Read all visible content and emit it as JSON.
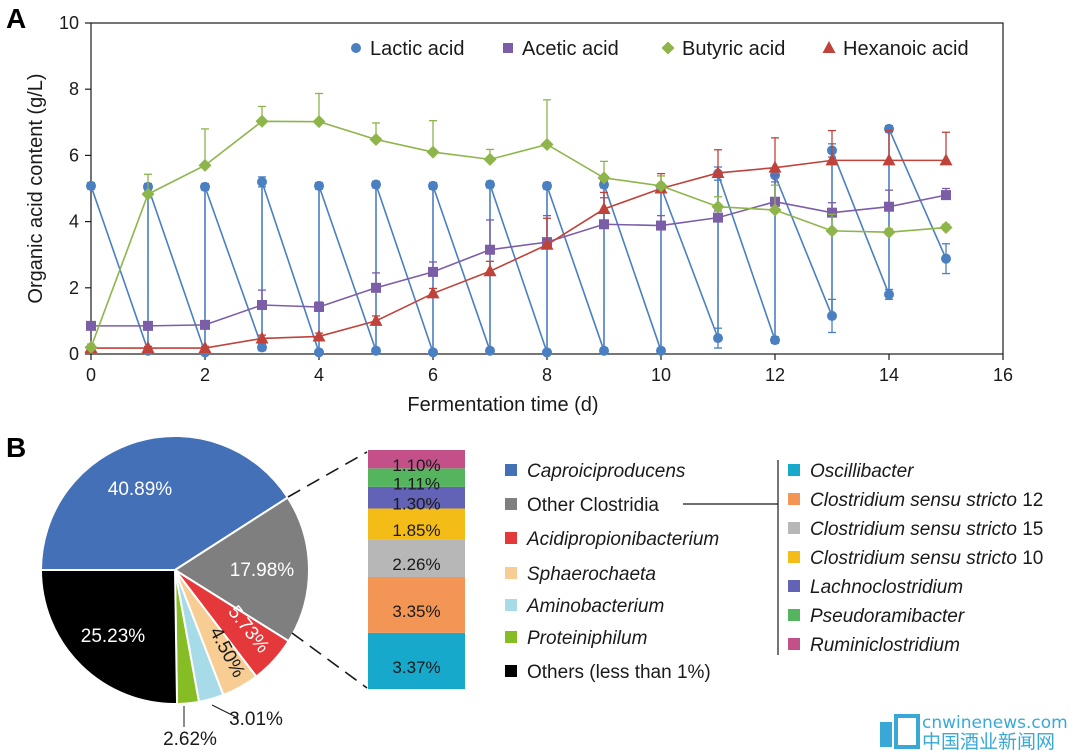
{
  "panels": {
    "a": "A",
    "b": "B"
  },
  "chart_data": [
    {
      "type": "line",
      "panel": "A",
      "xlabel": "Fermentation time (d)",
      "ylabel": "Organic acid content (g/L)",
      "xlim": [
        0,
        16
      ],
      "ylim": [
        0,
        10
      ],
      "xticks": [
        0,
        2,
        4,
        6,
        8,
        10,
        12,
        14,
        16
      ],
      "yticks": [
        0,
        2,
        4,
        6,
        8,
        10
      ],
      "grid": false,
      "legend_position": "top",
      "series": [
        {
          "name": "Lactic acid",
          "color": "#4a7fc1",
          "marker": "circle",
          "x": [
            0,
            1,
            1,
            2,
            2,
            3,
            3,
            4,
            4,
            5,
            5,
            6,
            6,
            7,
            7,
            8,
            8,
            9,
            9,
            10,
            10,
            11,
            11,
            12,
            12,
            13,
            13,
            14,
            14,
            15
          ],
          "y": [
            5.08,
            0.1,
            5.05,
            0.05,
            5.05,
            0.2,
            5.2,
            0.05,
            5.08,
            0.1,
            5.12,
            0.05,
            5.08,
            0.1,
            5.12,
            0.05,
            5.08,
            0.1,
            5.12,
            0.1,
            5.05,
            0.48,
            5.45,
            0.42,
            5.4,
            1.15,
            6.15,
            1.8,
            6.8,
            2.88
          ],
          "error": [
            0.1,
            0.05,
            0.1,
            0.05,
            0.1,
            0.1,
            0.15,
            0.05,
            0.1,
            0.05,
            0.1,
            0.05,
            0.1,
            0.05,
            0.1,
            0.05,
            0.1,
            0.05,
            0.1,
            0.05,
            0.1,
            0.3,
            0.2,
            0.1,
            0.2,
            0.5,
            0.2,
            0.15,
            0.1,
            0.45
          ]
        },
        {
          "name": "Acetic acid",
          "color": "#7b5ea7",
          "marker": "square",
          "x": [
            0,
            1,
            2,
            3,
            4,
            5,
            6,
            7,
            8,
            9,
            10,
            11,
            12,
            13,
            14,
            15
          ],
          "y": [
            0.85,
            0.85,
            0.88,
            1.48,
            1.42,
            2.0,
            2.48,
            3.15,
            3.38,
            3.92,
            3.88,
            4.12,
            4.6,
            4.27,
            4.45,
            4.8
          ],
          "error": [
            0.05,
            0.05,
            0.05,
            0.45,
            0.15,
            0.45,
            0.3,
            0.9,
            0.8,
            0.8,
            0.3,
            0.2,
            0.8,
            0.3,
            0.5,
            0.2
          ]
        },
        {
          "name": "Butyric acid",
          "color": "#8db54a",
          "marker": "diamond",
          "x": [
            0,
            1,
            2,
            3,
            4,
            5,
            6,
            7,
            8,
            9,
            10,
            11,
            12,
            13,
            14,
            15
          ],
          "y": [
            0.2,
            4.83,
            5.7,
            7.03,
            7.02,
            6.48,
            6.1,
            5.88,
            6.33,
            5.32,
            5.08,
            4.45,
            4.35,
            3.72,
            3.68,
            3.82
          ],
          "error": [
            0.1,
            0.6,
            1.1,
            0.45,
            0.85,
            0.5,
            0.95,
            0.3,
            1.35,
            0.5,
            0.3,
            0.3,
            0.75,
            0.5,
            0.1,
            0.1
          ]
        },
        {
          "name": "Hexanoic acid",
          "color": "#c0433b",
          "marker": "triangle",
          "x": [
            0,
            1,
            2,
            3,
            4,
            5,
            6,
            7,
            8,
            9,
            10,
            11,
            12,
            13,
            14,
            15
          ],
          "y": [
            0.18,
            0.18,
            0.18,
            0.47,
            0.53,
            1.0,
            1.83,
            2.5,
            3.3,
            4.38,
            5.0,
            5.47,
            5.63,
            5.85,
            5.85,
            5.85
          ],
          "error": [
            0.05,
            0.05,
            0.05,
            0.1,
            0.1,
            0.15,
            0.15,
            0.3,
            0.8,
            0.5,
            0.45,
            0.7,
            0.9,
            0.9,
            0.9,
            0.85
          ]
        }
      ]
    },
    {
      "type": "pie",
      "panel": "B",
      "slices": [
        {
          "name": "Caproiciproducens",
          "value": 40.89,
          "label": "40.89%",
          "color": "#4470b8",
          "italic": true
        },
        {
          "name": "Other Clostridia",
          "value": 17.98,
          "label": "17.98%",
          "color": "#7f7f7f",
          "italic": false
        },
        {
          "name": "Acidipropionibacterium",
          "value": 5.73,
          "label": "5.73%",
          "color": "#e4383a",
          "italic": true
        },
        {
          "name": "Sphaerochaeta",
          "value": 4.5,
          "label": "4.50%",
          "color": "#f7cd93",
          "italic": true
        },
        {
          "name": "Aminobacterium",
          "value": 3.01,
          "label": "3.01%",
          "color": "#a8dbe8",
          "italic": true
        },
        {
          "name": "Proteiniphilum",
          "value": 2.62,
          "label": "2.62%",
          "color": "#86bc24",
          "italic": true
        },
        {
          "name": "Others (less than 1%)",
          "value": 25.23,
          "label": "25.23%",
          "color": "#000000",
          "italic": false
        }
      ]
    },
    {
      "type": "bar",
      "panel": "B",
      "orientation": "stacked",
      "breakdown_of": "Other Clostridia",
      "segments": [
        {
          "name": "Oscillibacter",
          "value": 3.37,
          "label": "3.37%",
          "color": "#16a9cc"
        },
        {
          "name": "Clostridium sensu stricto 12",
          "value": 3.35,
          "label": "3.35%",
          "color": "#f39655"
        },
        {
          "name": "Clostridium sensu stricto 15",
          "value": 2.26,
          "label": "2.26%",
          "color": "#b7b7b7"
        },
        {
          "name": "Clostridium sensu stricto 10",
          "value": 1.85,
          "label": "1.85%",
          "color": "#f4bc16"
        },
        {
          "name": "Lachnoclostridium",
          "value": 1.3,
          "label": "1.30%",
          "color": "#6262b7"
        },
        {
          "name": "Pseudoramibacter",
          "value": 1.11,
          "label": "1.11%",
          "color": "#55b45e"
        },
        {
          "name": "Ruminiclostridium",
          "value": 1.1,
          "label": "1.10%",
          "color": "#c4508a"
        }
      ]
    }
  ],
  "legend_b_left": [
    {
      "name": "Caproiciproducens",
      "italic": true
    },
    {
      "name": "Other Clostridia",
      "italic": false
    },
    {
      "name": "Acidipropionibacterium",
      "italic": true
    },
    {
      "name": "Sphaerochaeta",
      "italic": true
    },
    {
      "name": "Aminobacterium",
      "italic": true
    },
    {
      "name": "Proteiniphilum",
      "italic": true
    },
    {
      "name": "Others (less than 1%)",
      "italic": false
    }
  ],
  "legend_b_right": [
    {
      "italic": "Oscillibacter",
      "plain": ""
    },
    {
      "italic": "Clostridium sensu stricto",
      "plain": " 12"
    },
    {
      "italic": "Clostridium sensu stricto",
      "plain": " 15"
    },
    {
      "italic": "Clostridium sensu stricto",
      "plain": " 10"
    },
    {
      "italic": "Lachnoclostridium",
      "plain": ""
    },
    {
      "italic": "Pseudoramibacter",
      "plain": ""
    },
    {
      "italic": "Ruminiclostridium",
      "plain": ""
    }
  ],
  "watermark": {
    "site": "cnwinenews.com",
    "name": "中国酒业新闻网",
    "color": "#38a9d6"
  }
}
